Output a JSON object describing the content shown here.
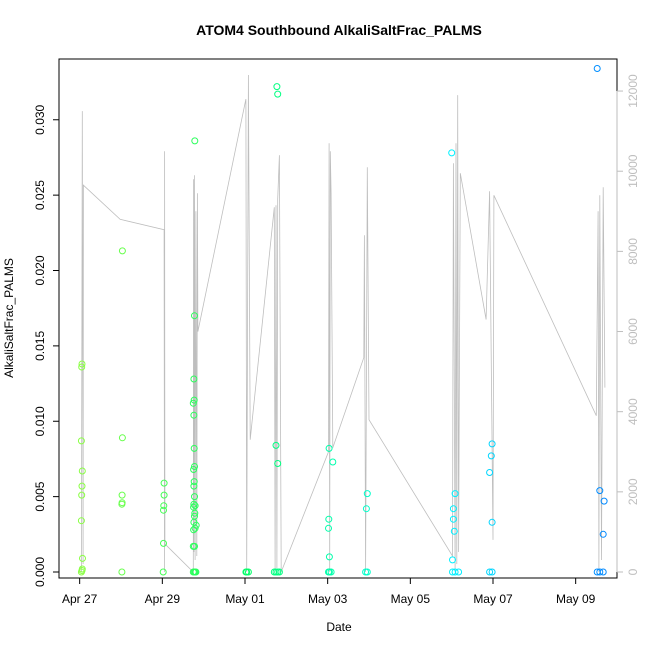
{
  "chart_data": {
    "type": "scatter",
    "title": "ATOM4 Southbound AlkaliSaltFrac_PALMS",
    "xlabel": "Date",
    "ylabel": "AlkaliSaltFrac_PALMS",
    "xlim": [
      "2017-04-26T12:00",
      "2017-05-10T00:00"
    ],
    "ylim": [
      0,
      0.0335
    ],
    "y2lim": [
      0,
      12600
    ],
    "x_ticks": [
      {
        "label": "Apr 27",
        "value": "2017-04-27"
      },
      {
        "label": "Apr 29",
        "value": "2017-04-29"
      },
      {
        "label": "May 01",
        "value": "2017-05-01"
      },
      {
        "label": "May 03",
        "value": "2017-05-03"
      },
      {
        "label": "May 05",
        "value": "2017-05-05"
      },
      {
        "label": "May 07",
        "value": "2017-05-07"
      },
      {
        "label": "May 09",
        "value": "2017-05-09"
      }
    ],
    "y_ticks": [
      {
        "label": "0.000",
        "value": 0
      },
      {
        "label": "0.005",
        "value": 0.005
      },
      {
        "label": "0.010",
        "value": 0.01
      },
      {
        "label": "0.015",
        "value": 0.015
      },
      {
        "label": "0.020",
        "value": 0.02
      },
      {
        "label": "0.025",
        "value": 0.025
      },
      {
        "label": "0.030",
        "value": 0.03
      }
    ],
    "y2_ticks": [
      {
        "label": "0",
        "value": 0
      },
      {
        "label": "2000",
        "value": 2000
      },
      {
        "label": "4000",
        "value": 4000
      },
      {
        "label": "6000",
        "value": 6000
      },
      {
        "label": "8000",
        "value": 8000
      },
      {
        "label": "10000",
        "value": 10000
      },
      {
        "label": "12000",
        "value": 12000
      }
    ],
    "grid": false,
    "legend": "none",
    "colors": {
      "line": "#bebebe",
      "axis": "#000000",
      "y2_axis": "#bebebe",
      "point_scale": [
        "#9dff3f",
        "#00ff66",
        "#00ffff",
        "#0080ff"
      ]
    },
    "altitude_series": [
      [
        "2017-04-27T01:00",
        0
      ],
      [
        "2017-04-27T01:30",
        11500
      ],
      [
        "2017-04-27T02:00",
        200
      ],
      [
        "2017-04-27T02:10",
        9650
      ],
      [
        "2017-04-27T23:30",
        8800
      ],
      [
        "2017-04-29T01:00",
        8540
      ],
      [
        "2017-04-29T01:15",
        0
      ],
      [
        "2017-04-29T01:20",
        10500
      ],
      [
        "2017-04-29T01:30",
        700
      ],
      [
        "2017-04-29T18:00",
        0
      ],
      [
        "2017-04-29T18:10",
        9800
      ],
      [
        "2017-04-29T18:20",
        500
      ],
      [
        "2017-04-29T18:40",
        9900
      ],
      [
        "2017-04-29T19:00",
        300
      ],
      [
        "2017-04-29T19:30",
        9000
      ],
      [
        "2017-04-29T20:00",
        400
      ],
      [
        "2017-04-29T20:20",
        9450
      ],
      [
        "2017-04-29T20:40",
        6000
      ],
      [
        "2017-05-01T00:30",
        11800
      ],
      [
        "2017-05-01T01:00",
        0
      ],
      [
        "2017-05-01T02:00",
        12400
      ],
      [
        "2017-05-01T03:00",
        3300
      ],
      [
        "2017-05-01T17:00",
        9100
      ],
      [
        "2017-05-01T17:30",
        0
      ],
      [
        "2017-05-01T18:00",
        9150
      ],
      [
        "2017-05-01T18:30",
        100
      ],
      [
        "2017-05-01T19:00",
        9300
      ],
      [
        "2017-05-01T20:00",
        10400
      ],
      [
        "2017-05-01T21:00",
        0
      ],
      [
        "2017-05-03T00:30",
        3000
      ],
      [
        "2017-05-03T00:50",
        10700
      ],
      [
        "2017-05-03T01:10",
        0
      ],
      [
        "2017-05-03T01:30",
        10500
      ],
      [
        "2017-05-03T02:00",
        9450
      ],
      [
        "2017-05-03T03:00",
        3100
      ],
      [
        "2017-05-03T21:00",
        5350
      ],
      [
        "2017-05-03T21:20",
        8400
      ],
      [
        "2017-05-03T22:00",
        0
      ],
      [
        "2017-05-03T23:00",
        10100
      ],
      [
        "2017-05-04T00:00",
        3800
      ],
      [
        "2017-05-06T00:30",
        400
      ],
      [
        "2017-05-06T01:00",
        10200
      ],
      [
        "2017-05-06T02:00",
        0
      ],
      [
        "2017-05-06T02:30",
        10700
      ],
      [
        "2017-05-06T03:00",
        200
      ],
      [
        "2017-05-06T03:30",
        11900
      ],
      [
        "2017-05-06T04:00",
        500
      ],
      [
        "2017-05-06T05:00",
        9950
      ],
      [
        "2017-05-06T20:00",
        6300
      ],
      [
        "2017-05-06T22:00",
        9500
      ],
      [
        "2017-05-07T00:00",
        800
      ],
      [
        "2017-05-07T00:30",
        9400
      ],
      [
        "2017-05-09T12:00",
        3900
      ],
      [
        "2017-05-09T13:00",
        9000
      ],
      [
        "2017-05-09T13:30",
        0
      ],
      [
        "2017-05-09T14:00",
        9400
      ],
      [
        "2017-05-09T15:00",
        300
      ],
      [
        "2017-05-09T16:00",
        9600
      ],
      [
        "2017-05-09T17:00",
        4600
      ]
    ],
    "points": [
      [
        "2017-04-27T01:00",
        0.0
      ],
      [
        "2017-04-27T01:20",
        0.0001
      ],
      [
        "2017-04-27T01:30",
        0.0002
      ],
      [
        "2017-04-27T01:40",
        0.0009
      ],
      [
        "2017-04-27T01:00",
        0.0034
      ],
      [
        "2017-04-27T01:10",
        0.0051
      ],
      [
        "2017-04-27T01:20",
        0.0057
      ],
      [
        "2017-04-27T01:30",
        0.0067
      ],
      [
        "2017-04-27T01:00",
        0.0087
      ],
      [
        "2017-04-27T01:10",
        0.0136
      ],
      [
        "2017-04-27T01:20",
        0.0138
      ],
      [
        "2017-04-28T00:30",
        0.0
      ],
      [
        "2017-04-28T00:30",
        0.0045
      ],
      [
        "2017-04-28T00:40",
        0.0046
      ],
      [
        "2017-04-28T00:40",
        0.0051
      ],
      [
        "2017-04-28T00:50",
        0.0089
      ],
      [
        "2017-04-28T00:50",
        0.0213
      ],
      [
        "2017-04-29T00:30",
        0.0
      ],
      [
        "2017-04-29T00:40",
        0.0019
      ],
      [
        "2017-04-29T00:40",
        0.0041
      ],
      [
        "2017-04-29T00:50",
        0.0044
      ],
      [
        "2017-04-29T01:00",
        0.0051
      ],
      [
        "2017-04-29T01:00",
        0.0059
      ],
      [
        "2017-04-29T18:00",
        0.0
      ],
      [
        "2017-04-29T18:30",
        0.0
      ],
      [
        "2017-04-29T19:00",
        0.0
      ],
      [
        "2017-04-29T19:30",
        0.0
      ],
      [
        "2017-04-29T18:00",
        0.0017
      ],
      [
        "2017-04-29T18:40",
        0.0017
      ],
      [
        "2017-04-29T18:10",
        0.0028
      ],
      [
        "2017-04-29T18:20",
        0.0033
      ],
      [
        "2017-04-29T18:40",
        0.0037
      ],
      [
        "2017-04-29T18:50",
        0.0039
      ],
      [
        "2017-04-29T19:00",
        0.0029
      ],
      [
        "2017-04-29T18:10",
        0.0043
      ],
      [
        "2017-04-29T18:20",
        0.0045
      ],
      [
        "2017-04-29T18:40",
        0.005
      ],
      [
        "2017-04-29T19:00",
        0.0044
      ],
      [
        "2017-04-29T18:20",
        0.0057
      ],
      [
        "2017-04-29T18:30",
        0.006
      ],
      [
        "2017-04-29T18:10",
        0.0068
      ],
      [
        "2017-04-29T18:30",
        0.0082
      ],
      [
        "2017-04-29T18:20",
        0.0104
      ],
      [
        "2017-04-29T18:00",
        0.0112
      ],
      [
        "2017-04-29T18:30",
        0.0114
      ],
      [
        "2017-04-29T18:20",
        0.0128
      ],
      [
        "2017-04-29T18:40",
        0.017
      ],
      [
        "2017-04-29T18:50",
        0.0286
      ],
      [
        "2017-04-29T18:40",
        0.007
      ],
      [
        "2017-04-29T19:40",
        0.0031
      ],
      [
        "2017-05-01T00:30",
        0.0
      ],
      [
        "2017-05-01T01:00",
        0.0
      ],
      [
        "2017-05-01T02:00",
        0.0
      ],
      [
        "2017-05-01T17:00",
        0.0
      ],
      [
        "2017-05-01T18:00",
        0.0
      ],
      [
        "2017-05-01T19:00",
        0.0
      ],
      [
        "2017-05-01T20:00",
        0.0
      ],
      [
        "2017-05-01T18:00",
        0.0084
      ],
      [
        "2017-05-01T19:00",
        0.0072
      ],
      [
        "2017-05-01T19:00",
        0.0317
      ],
      [
        "2017-05-01T18:30",
        0.0322
      ],
      [
        "2017-05-03T00:30",
        0.0
      ],
      [
        "2017-05-03T01:00",
        0.0
      ],
      [
        "2017-05-03T02:00",
        0.0
      ],
      [
        "2017-05-03T00:30",
        0.0029
      ],
      [
        "2017-05-03T00:40",
        0.0035
      ],
      [
        "2017-05-03T00:50",
        0.0082
      ],
      [
        "2017-05-03T01:00",
        0.001
      ],
      [
        "2017-05-03T03:00",
        0.0073
      ],
      [
        "2017-05-03T22:00",
        0.0
      ],
      [
        "2017-05-03T23:00",
        0.0
      ],
      [
        "2017-05-03T22:30",
        0.0042
      ],
      [
        "2017-05-03T23:00",
        0.0052
      ],
      [
        "2017-05-06T00:30",
        0.0
      ],
      [
        "2017-05-06T02:00",
        0.0
      ],
      [
        "2017-05-06T04:00",
        0.0
      ],
      [
        "2017-05-06T00:30",
        0.0008
      ],
      [
        "2017-05-06T01:00",
        0.0042
      ],
      [
        "2017-05-06T02:00",
        0.0052
      ],
      [
        "2017-05-06T01:30",
        0.0027
      ],
      [
        "2017-05-06T01:00",
        0.0035
      ],
      [
        "2017-05-06T00:00",
        0.0278
      ],
      [
        "2017-05-06T22:00",
        0.0
      ],
      [
        "2017-05-06T23:30",
        0.0
      ],
      [
        "2017-05-06T22:00",
        0.0066
      ],
      [
        "2017-05-06T23:00",
        0.0077
      ],
      [
        "2017-05-06T23:30",
        0.0085
      ],
      [
        "2017-05-06T23:30",
        0.0033
      ],
      [
        "2017-05-09T12:30",
        0.0
      ],
      [
        "2017-05-09T14:00",
        0.0
      ],
      [
        "2017-05-09T16:00",
        0.0
      ],
      [
        "2017-05-09T14:00",
        0.0054
      ],
      [
        "2017-05-09T16:30",
        0.0047
      ],
      [
        "2017-05-09T16:00",
        0.0025
      ],
      [
        "2017-05-09T12:30",
        0.0334
      ]
    ]
  }
}
